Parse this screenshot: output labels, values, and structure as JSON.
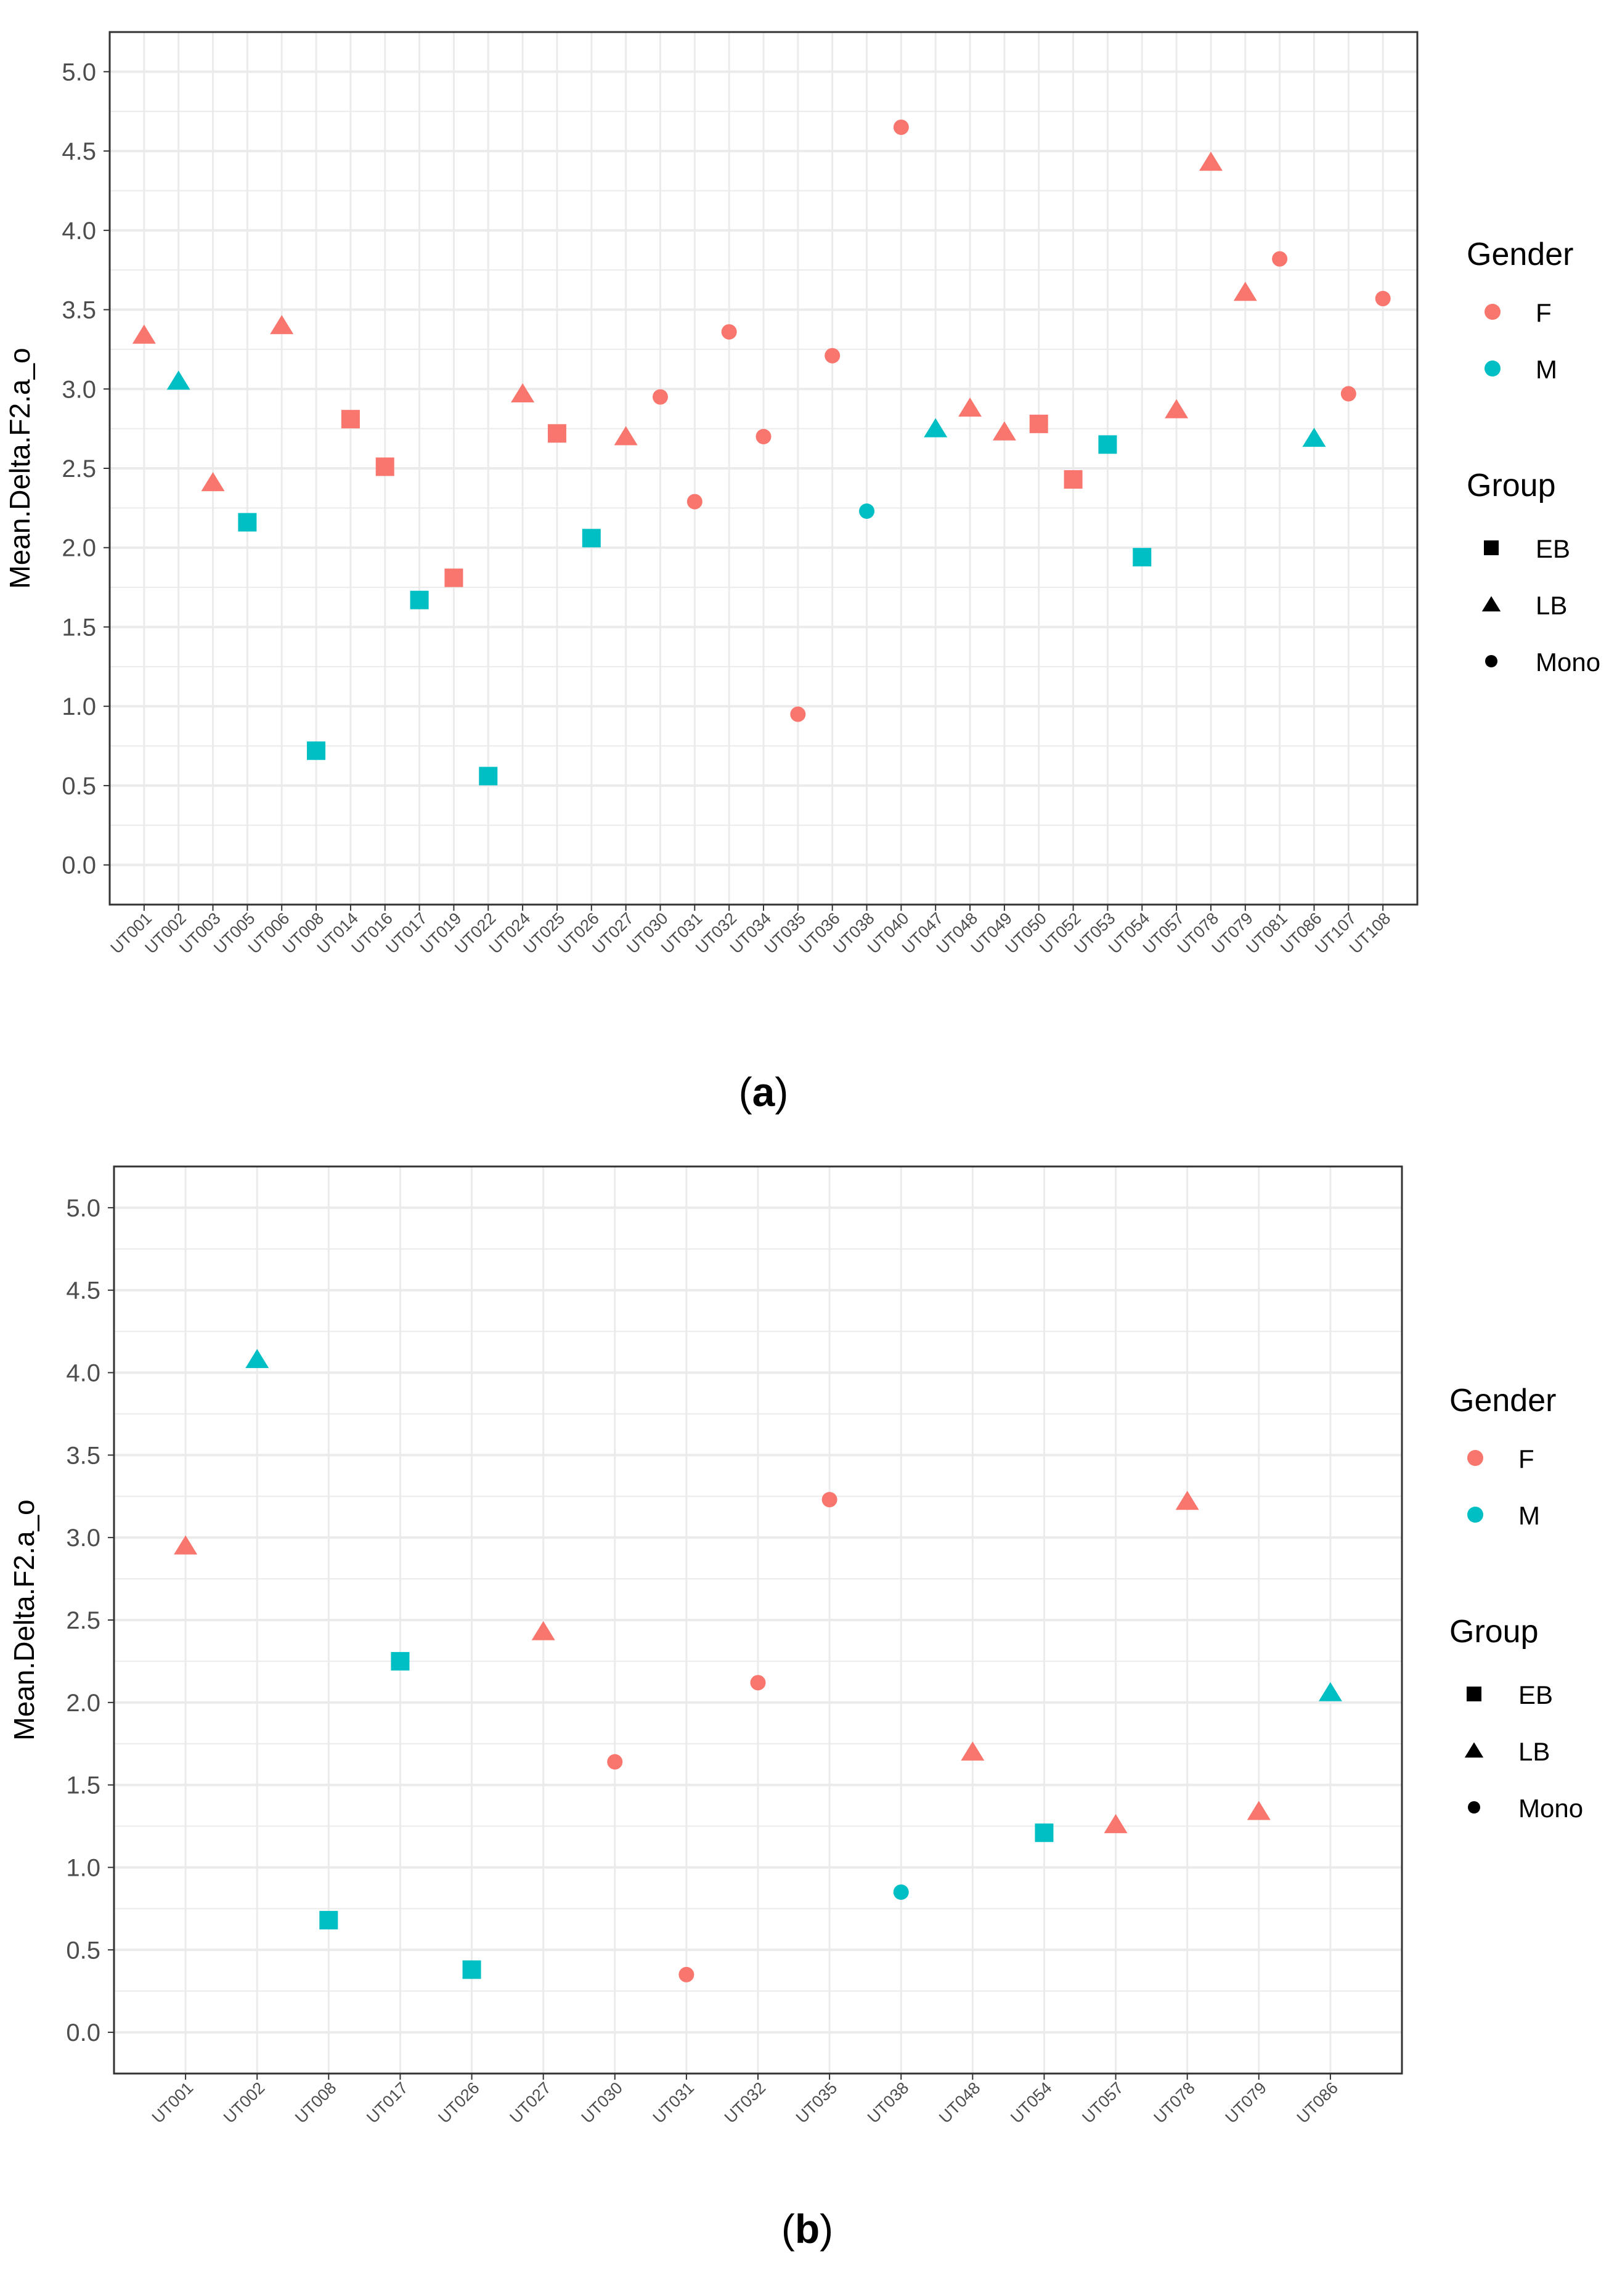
{
  "colors": {
    "F": "#F8766D",
    "M": "#00BFC4",
    "grid": "#EBEBEB",
    "axis_text": "#4D4D4D",
    "frame": "#333333"
  },
  "legend": {
    "gender_title": "Gender",
    "gender_items": [
      "F",
      "M"
    ],
    "group_title": "Group",
    "group_items": [
      "EB",
      "LB",
      "Mono"
    ]
  },
  "chart_data": [
    {
      "type": "scatter",
      "panel_label": "a",
      "ylabel": "Mean.Delta.F2.a_o",
      "xlabel": "",
      "ylim": [
        -0.25,
        5.25
      ],
      "yticks": [
        "0.0",
        "0.5",
        "1.0",
        "1.5",
        "2.0",
        "2.5",
        "3.0",
        "3.5",
        "4.0",
        "4.5",
        "5.0"
      ],
      "categories": [
        "UT001",
        "UT002",
        "UT003",
        "UT005",
        "UT006",
        "UT008",
        "UT014",
        "UT016",
        "UT017",
        "UT019",
        "UT022",
        "UT024",
        "UT025",
        "UT026",
        "UT027",
        "UT030",
        "UT031",
        "UT032",
        "UT034",
        "UT035",
        "UT036",
        "UT038",
        "UT040",
        "UT047",
        "UT048",
        "UT049",
        "UT050",
        "UT052",
        "UT053",
        "UT054",
        "UT057",
        "UT078",
        "UT079",
        "UT081",
        "UT086",
        "UT107",
        "UT108"
      ],
      "points": [
        {
          "x": "UT001",
          "y": 3.34,
          "gender": "F",
          "group": "LB"
        },
        {
          "x": "UT002",
          "y": 3.05,
          "gender": "M",
          "group": "LB"
        },
        {
          "x": "UT003",
          "y": 2.41,
          "gender": "F",
          "group": "LB"
        },
        {
          "x": "UT005",
          "y": 2.16,
          "gender": "M",
          "group": "EB"
        },
        {
          "x": "UT006",
          "y": 3.4,
          "gender": "F",
          "group": "LB"
        },
        {
          "x": "UT008",
          "y": 0.72,
          "gender": "M",
          "group": "EB"
        },
        {
          "x": "UT014",
          "y": 2.81,
          "gender": "F",
          "group": "EB"
        },
        {
          "x": "UT016",
          "y": 2.51,
          "gender": "F",
          "group": "EB"
        },
        {
          "x": "UT017",
          "y": 1.67,
          "gender": "M",
          "group": "EB"
        },
        {
          "x": "UT019",
          "y": 1.81,
          "gender": "F",
          "group": "EB"
        },
        {
          "x": "UT022",
          "y": 0.56,
          "gender": "M",
          "group": "EB"
        },
        {
          "x": "UT024",
          "y": 2.97,
          "gender": "F",
          "group": "LB"
        },
        {
          "x": "UT025",
          "y": 2.72,
          "gender": "F",
          "group": "EB"
        },
        {
          "x": "UT026",
          "y": 2.06,
          "gender": "M",
          "group": "EB"
        },
        {
          "x": "UT027",
          "y": 2.7,
          "gender": "F",
          "group": "LB"
        },
        {
          "x": "UT030",
          "y": 2.95,
          "gender": "F",
          "group": "Mono"
        },
        {
          "x": "UT031",
          "y": 2.29,
          "gender": "F",
          "group": "Mono"
        },
        {
          "x": "UT032",
          "y": 3.36,
          "gender": "F",
          "group": "Mono"
        },
        {
          "x": "UT034",
          "y": 2.7,
          "gender": "F",
          "group": "Mono"
        },
        {
          "x": "UT035",
          "y": 0.95,
          "gender": "F",
          "group": "Mono"
        },
        {
          "x": "UT036",
          "y": 3.21,
          "gender": "F",
          "group": "Mono"
        },
        {
          "x": "UT038",
          "y": 2.23,
          "gender": "M",
          "group": "Mono"
        },
        {
          "x": "UT040",
          "y": 4.65,
          "gender": "F",
          "group": "Mono"
        },
        {
          "x": "UT047",
          "y": 2.75,
          "gender": "M",
          "group": "LB"
        },
        {
          "x": "UT048",
          "y": 2.88,
          "gender": "F",
          "group": "LB"
        },
        {
          "x": "UT049",
          "y": 2.73,
          "gender": "F",
          "group": "LB"
        },
        {
          "x": "UT050",
          "y": 2.78,
          "gender": "F",
          "group": "EB"
        },
        {
          "x": "UT052",
          "y": 2.43,
          "gender": "F",
          "group": "EB"
        },
        {
          "x": "UT053",
          "y": 2.65,
          "gender": "M",
          "group": "EB"
        },
        {
          "x": "UT054",
          "y": 1.94,
          "gender": "M",
          "group": "EB"
        },
        {
          "x": "UT057",
          "y": 2.87,
          "gender": "F",
          "group": "LB"
        },
        {
          "x": "UT078",
          "y": 4.43,
          "gender": "F",
          "group": "LB"
        },
        {
          "x": "UT079",
          "y": 3.61,
          "gender": "F",
          "group": "LB"
        },
        {
          "x": "UT081",
          "y": 3.82,
          "gender": "F",
          "group": "Mono"
        },
        {
          "x": "UT086",
          "y": 2.69,
          "gender": "M",
          "group": "LB"
        },
        {
          "x": "UT107",
          "y": 2.97,
          "gender": "F",
          "group": "Mono"
        },
        {
          "x": "UT108",
          "y": 3.57,
          "gender": "F",
          "group": "Mono"
        }
      ]
    },
    {
      "type": "scatter",
      "panel_label": "b",
      "ylabel": "Mean.Delta.F2.a_o",
      "xlabel": "",
      "ylim": [
        -0.25,
        5.25
      ],
      "yticks": [
        "0.0",
        "0.5",
        "1.0",
        "1.5",
        "2.0",
        "2.5",
        "3.0",
        "3.5",
        "4.0",
        "4.5",
        "5.0"
      ],
      "categories": [
        "UT001",
        "UT002",
        "UT008",
        "UT017",
        "UT026",
        "UT027",
        "UT030",
        "UT031",
        "UT032",
        "UT035",
        "UT038",
        "UT048",
        "UT054",
        "UT057",
        "UT078",
        "UT079",
        "UT086"
      ],
      "points": [
        {
          "x": "UT001",
          "y": 2.95,
          "gender": "F",
          "group": "LB"
        },
        {
          "x": "UT002",
          "y": 4.08,
          "gender": "M",
          "group": "LB"
        },
        {
          "x": "UT008",
          "y": 0.68,
          "gender": "M",
          "group": "EB"
        },
        {
          "x": "UT017",
          "y": 2.25,
          "gender": "M",
          "group": "EB"
        },
        {
          "x": "UT026",
          "y": 0.38,
          "gender": "M",
          "group": "EB"
        },
        {
          "x": "UT027",
          "y": 2.43,
          "gender": "F",
          "group": "LB"
        },
        {
          "x": "UT030",
          "y": 1.64,
          "gender": "F",
          "group": "Mono"
        },
        {
          "x": "UT031",
          "y": 0.35,
          "gender": "F",
          "group": "Mono"
        },
        {
          "x": "UT032",
          "y": 2.12,
          "gender": "F",
          "group": "Mono"
        },
        {
          "x": "UT035",
          "y": 3.23,
          "gender": "F",
          "group": "Mono"
        },
        {
          "x": "UT038",
          "y": 0.85,
          "gender": "M",
          "group": "Mono"
        },
        {
          "x": "UT048",
          "y": 1.7,
          "gender": "F",
          "group": "LB"
        },
        {
          "x": "UT054",
          "y": 1.21,
          "gender": "M",
          "group": "EB"
        },
        {
          "x": "UT057",
          "y": 1.26,
          "gender": "F",
          "group": "LB"
        },
        {
          "x": "UT078",
          "y": 3.22,
          "gender": "F",
          "group": "LB"
        },
        {
          "x": "UT079",
          "y": 1.34,
          "gender": "F",
          "group": "LB"
        },
        {
          "x": "UT086",
          "y": 2.06,
          "gender": "M",
          "group": "LB"
        }
      ]
    }
  ]
}
